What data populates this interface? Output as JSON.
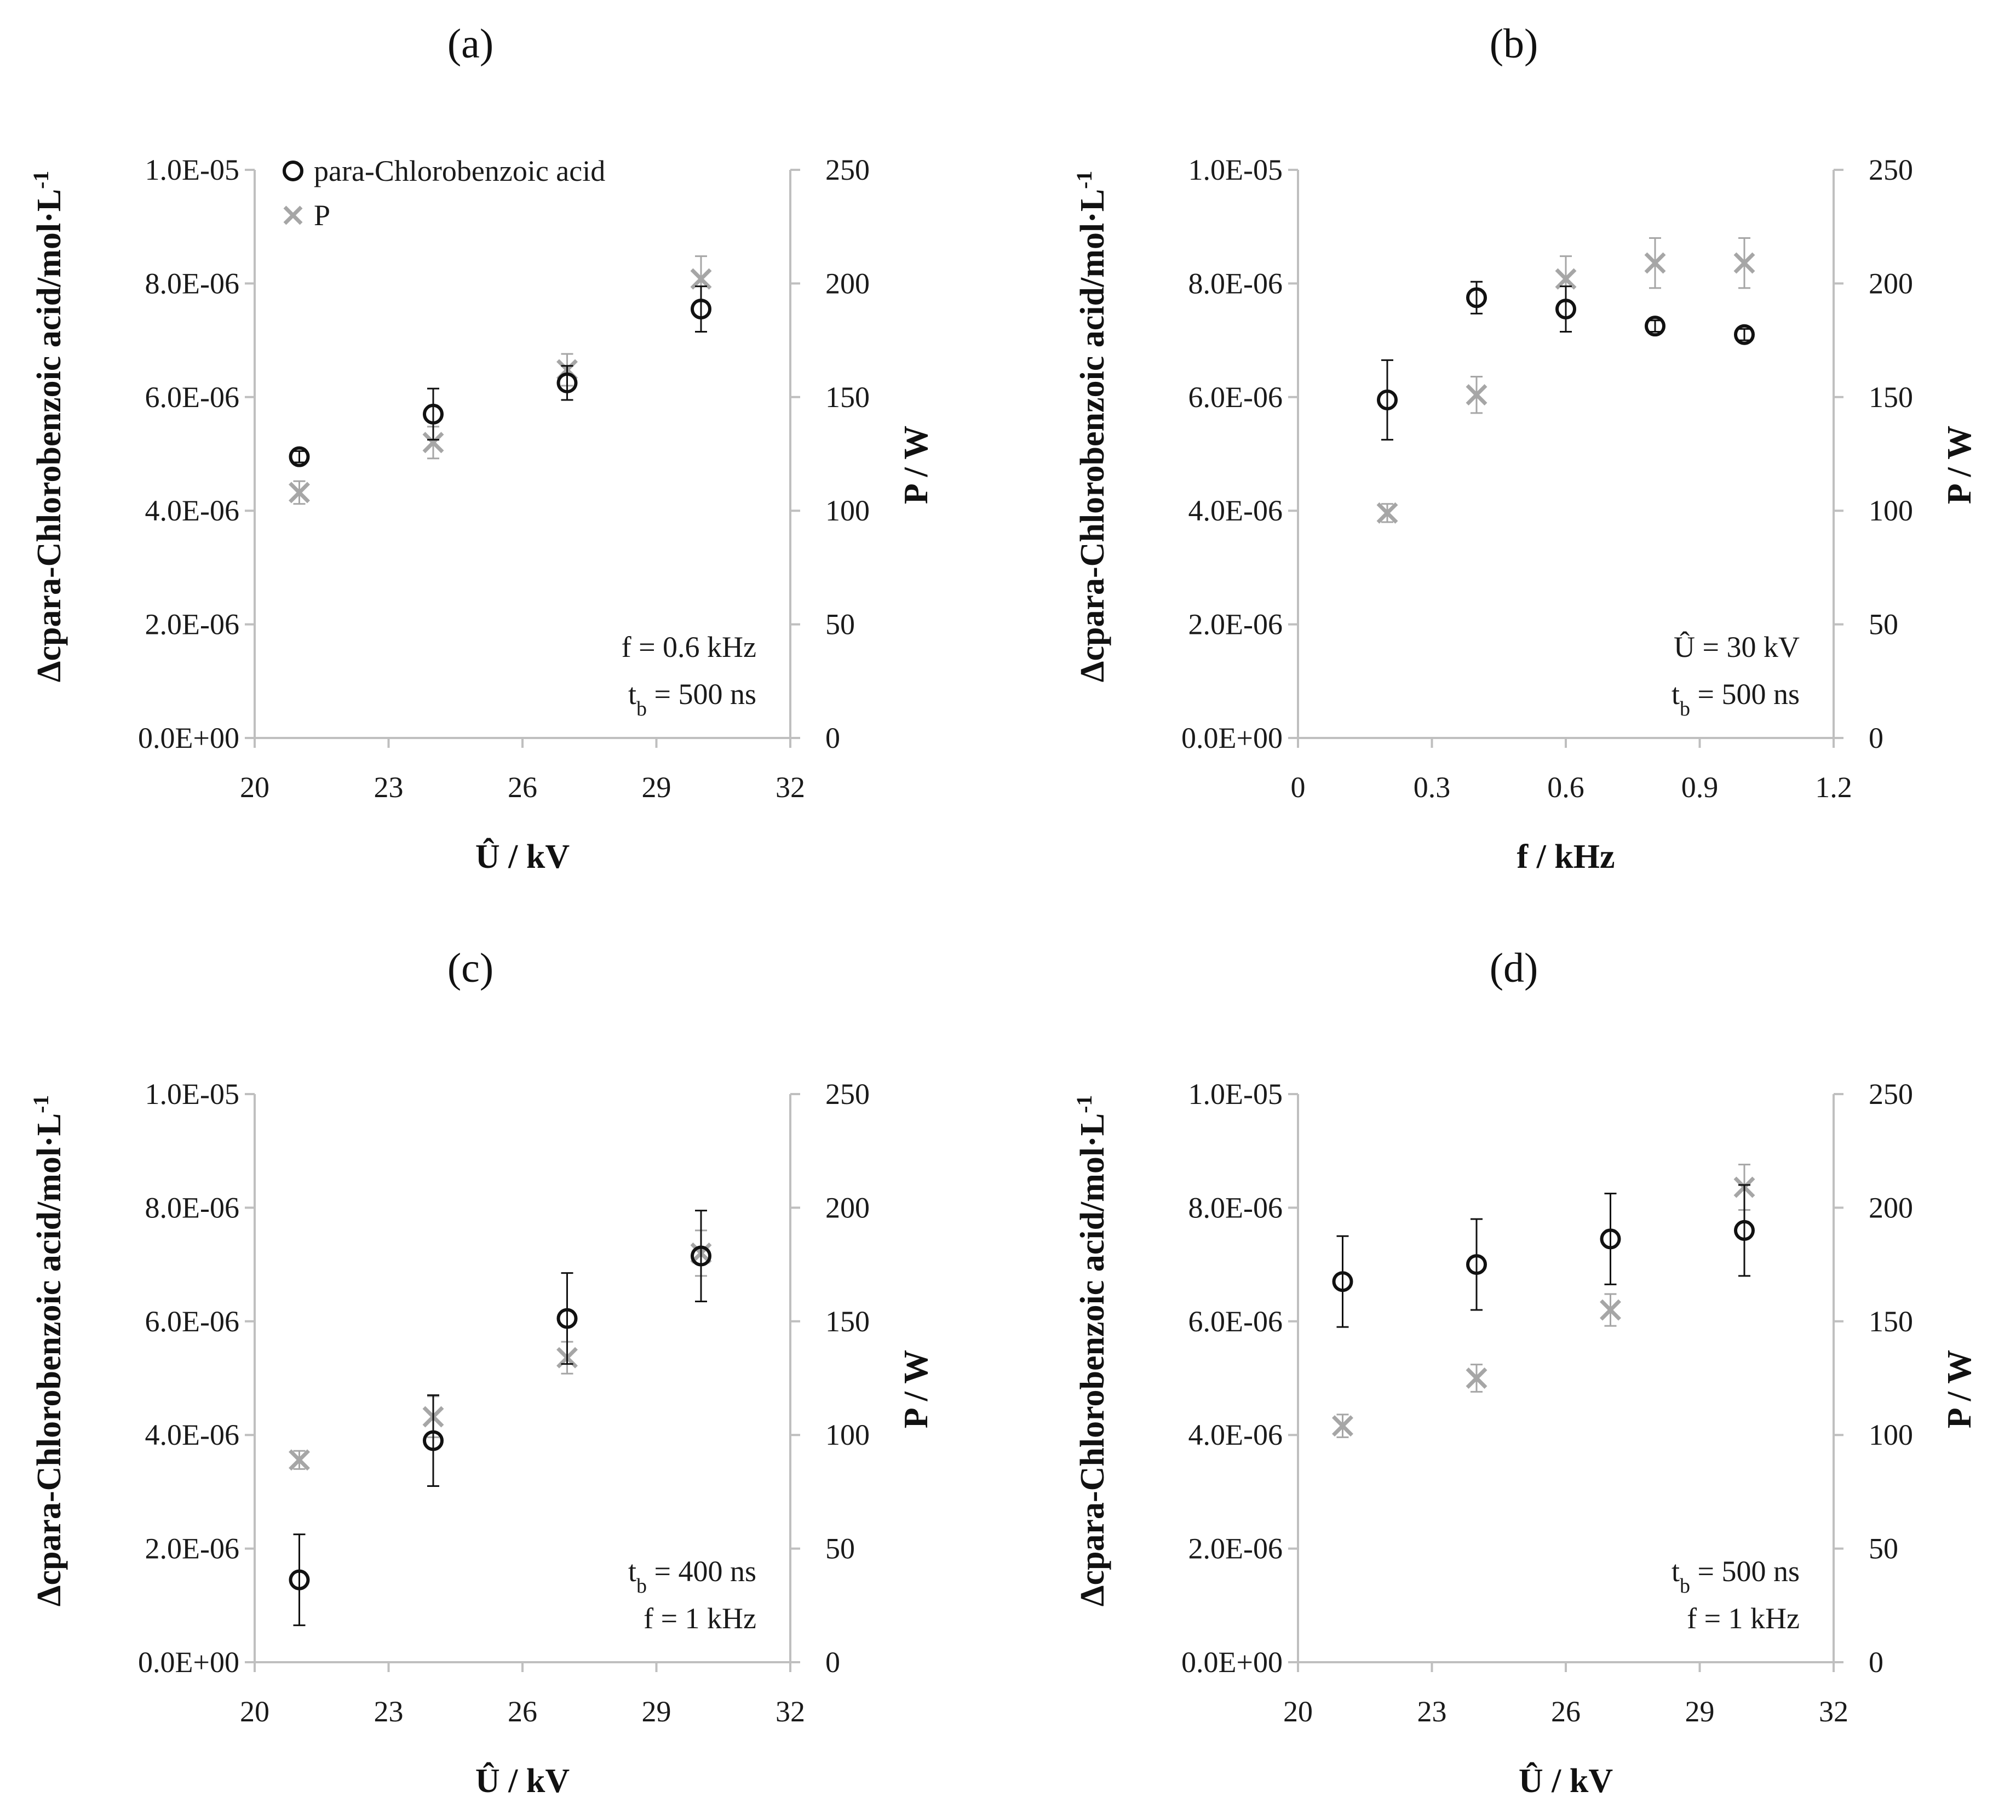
{
  "figure": {
    "colors": {
      "primary": "#111111",
      "secondary": "#a6a6a6",
      "axis": "#bfbfbf"
    },
    "legend": {
      "circle_label": "para-Chlorobenzoic acid",
      "cross_label": "P"
    }
  },
  "chart_data": [
    {
      "id": "a",
      "type": "scatter",
      "panel_label": "(a)",
      "xlabel": "Û / kV",
      "ylabel": "Δcpara-Chlorobenzoic acid/mol·L-1",
      "ylabel_main": "Δcpara-Chlorobenzoic acid/mol·L",
      "ylabel_sup": "-1",
      "y2label": "P / W",
      "xlim": [
        20,
        32
      ],
      "ylim": [
        0,
        1e-05
      ],
      "y2lim": [
        0,
        250
      ],
      "xticks": [
        "20",
        "23",
        "26",
        "29",
        "32"
      ],
      "yticks": [
        "0.0E+00",
        "2.0E-06",
        "4.0E-06",
        "6.0E-06",
        "8.0E-06",
        "1.0E-05"
      ],
      "y2ticks": [
        "0",
        "50",
        "100",
        "150",
        "200",
        "250"
      ],
      "annotations": [
        {
          "main": "f = 0.6 kHz",
          "sub": "",
          "tail": ""
        },
        {
          "main": "t",
          "sub": "b",
          "tail": " = 500 ns"
        }
      ],
      "series": [
        {
          "name": "para-Chlorobenzoic acid",
          "axis": "left",
          "marker": "circle",
          "x": [
            21,
            24,
            27,
            30
          ],
          "y": [
            4.95e-06,
            5.7e-06,
            6.25e-06,
            7.55e-06
          ],
          "err": [
            1e-07,
            4.5e-07,
            3e-07,
            4e-07
          ]
        },
        {
          "name": "P",
          "axis": "right",
          "marker": "cross",
          "x": [
            21,
            24,
            27,
            30
          ],
          "y": [
            108,
            130,
            162,
            202
          ],
          "err": [
            5,
            7,
            7,
            10
          ]
        }
      ]
    },
    {
      "id": "b",
      "type": "scatter",
      "panel_label": "(b)",
      "xlabel": "f / kHz",
      "ylabel": "Δcpara-Chlorobenzoic acid/mol·L-1",
      "ylabel_main": "Δcpara-Chlorobenzoic acid/mol·L",
      "ylabel_sup": "-1",
      "y2label": "P / W",
      "xlim": [
        0,
        1.2
      ],
      "ylim": [
        0,
        1e-05
      ],
      "y2lim": [
        0,
        250
      ],
      "xticks": [
        "0",
        "0.3",
        "0.6",
        "0.9",
        "1.2"
      ],
      "yticks": [
        "0.0E+00",
        "2.0E-06",
        "4.0E-06",
        "6.0E-06",
        "8.0E-06",
        "1.0E-05"
      ],
      "y2ticks": [
        "0",
        "50",
        "100",
        "150",
        "200",
        "250"
      ],
      "annotations": [
        {
          "main": "Û = 30 kV",
          "sub": "",
          "tail": ""
        },
        {
          "main": "t",
          "sub": "b",
          "tail": " = 500 ns"
        }
      ],
      "series": [
        {
          "name": "para-Chlorobenzoic acid",
          "axis": "left",
          "marker": "circle",
          "x": [
            0.2,
            0.4,
            0.6,
            0.8,
            1.0
          ],
          "y": [
            5.95e-06,
            7.75e-06,
            7.55e-06,
            7.25e-06,
            7.1e-06
          ],
          "err": [
            7e-07,
            2.8e-07,
            4e-07,
            1e-07,
            1e-07
          ]
        },
        {
          "name": "P",
          "axis": "right",
          "marker": "cross",
          "x": [
            0.2,
            0.4,
            0.6,
            0.8,
            1.0
          ],
          "y": [
            99,
            151,
            202,
            209,
            209
          ],
          "err": [
            4,
            8,
            10,
            11,
            11
          ]
        }
      ]
    },
    {
      "id": "c",
      "type": "scatter",
      "panel_label": "(c)",
      "xlabel": "Û / kV",
      "ylabel": "Δcpara-Chlorobenzoic acid/mol·L-1",
      "ylabel_main": "Δcpara-Chlorobenzoic acid/mol·L",
      "ylabel_sup": "-1",
      "y2label": "P / W",
      "xlim": [
        20,
        32
      ],
      "ylim": [
        0,
        1e-05
      ],
      "y2lim": [
        0,
        250
      ],
      "xticks": [
        "20",
        "23",
        "26",
        "29",
        "32"
      ],
      "yticks": [
        "0.0E+00",
        "2.0E-06",
        "4.0E-06",
        "6.0E-06",
        "8.0E-06",
        "1.0E-05"
      ],
      "y2ticks": [
        "0",
        "50",
        "100",
        "150",
        "200",
        "250"
      ],
      "annotations": [
        {
          "main": "t",
          "sub": "b",
          "tail": " = 400 ns"
        },
        {
          "main": "f = 1 kHz",
          "sub": "",
          "tail": ""
        }
      ],
      "series": [
        {
          "name": "para-Chlorobenzoic acid",
          "axis": "left",
          "marker": "circle",
          "x": [
            21,
            24,
            27,
            30
          ],
          "y": [
            1.45e-06,
            3.9e-06,
            6.05e-06,
            7.15e-06
          ],
          "err": [
            8e-07,
            8e-07,
            8e-07,
            8e-07
          ]
        },
        {
          "name": "P",
          "axis": "right",
          "marker": "cross",
          "x": [
            21,
            24,
            27,
            30
          ],
          "y": [
            89,
            108,
            134,
            180
          ],
          "err": [
            4,
            9,
            7,
            10
          ]
        }
      ]
    },
    {
      "id": "d",
      "type": "scatter",
      "panel_label": "(d)",
      "xlabel": "Û / kV",
      "ylabel": "Δcpara-Chlorobenzoic acid/mol·L-1",
      "ylabel_main": "Δcpara-Chlorobenzoic acid/mol·L",
      "ylabel_sup": "-1",
      "y2label": "P / W",
      "xlim": [
        20,
        32
      ],
      "ylim": [
        0,
        1e-05
      ],
      "y2lim": [
        0,
        250
      ],
      "xticks": [
        "20",
        "23",
        "26",
        "29",
        "32"
      ],
      "yticks": [
        "0.0E+00",
        "2.0E-06",
        "4.0E-06",
        "6.0E-06",
        "8.0E-06",
        "1.0E-05"
      ],
      "y2ticks": [
        "0",
        "50",
        "100",
        "150",
        "200",
        "250"
      ],
      "annotations": [
        {
          "main": "t",
          "sub": "b",
          "tail": " = 500 ns"
        },
        {
          "main": "f = 1 kHz",
          "sub": "",
          "tail": ""
        }
      ],
      "series": [
        {
          "name": "para-Chlorobenzoic acid",
          "axis": "left",
          "marker": "circle",
          "x": [
            21,
            24,
            27,
            30
          ],
          "y": [
            6.7e-06,
            7e-06,
            7.45e-06,
            7.6e-06
          ],
          "err": [
            8e-07,
            8e-07,
            8e-07,
            8e-07
          ]
        },
        {
          "name": "P",
          "axis": "right",
          "marker": "cross",
          "x": [
            21,
            24,
            27,
            30
          ],
          "y": [
            104,
            125,
            155,
            209
          ],
          "err": [
            5,
            6,
            7,
            10
          ]
        }
      ]
    }
  ]
}
